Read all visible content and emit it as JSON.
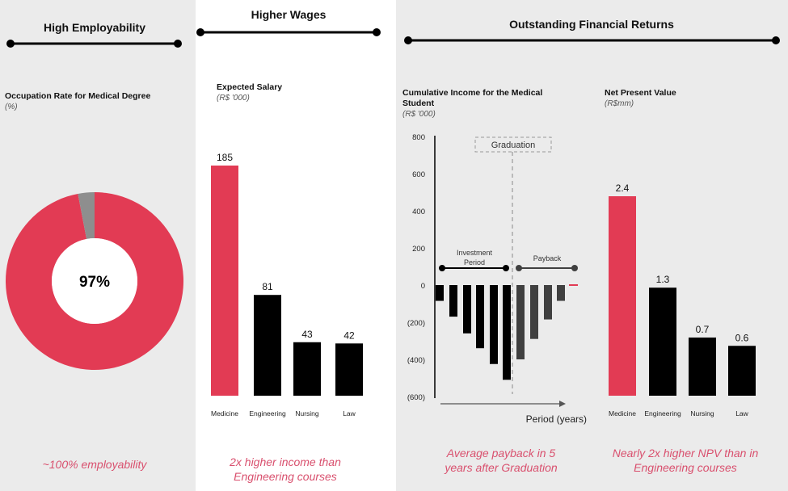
{
  "colors": {
    "accent": "#e23b54",
    "dark": "#000000",
    "payback": "#404040",
    "donut_rest": "#8e8e8e",
    "note": "#d9506e",
    "panel_gray": "#ebebeb"
  },
  "sections": [
    {
      "title": "High Employability",
      "note": "~100% employability"
    },
    {
      "title": "Higher Wages",
      "note_lines": [
        "2x higher income than",
        "Engineering courses"
      ]
    },
    {
      "title": "Outstanding Financial Returns",
      "notes": [
        [
          "Average payback in 5",
          "years after Graduation"
        ],
        [
          "Nearly 2x higher NPV than in",
          "Engineering courses"
        ]
      ]
    }
  ],
  "chart_data": [
    {
      "type": "pie",
      "title": "Occupation Rate for Medical Degree",
      "unit": "(%)",
      "center_label": "97%",
      "values": [
        97,
        3
      ],
      "donut": true
    },
    {
      "type": "bar",
      "title": "Expected Salary",
      "unit": "(R$ '000)",
      "categories": [
        "Medicine",
        "Engineering",
        "Nursing",
        "Law"
      ],
      "values": [
        185,
        81,
        43,
        42
      ],
      "highlight": "Medicine"
    },
    {
      "type": "bar",
      "title": "Cumulative Income for the Medical Student",
      "unit": "(R$ '000)",
      "xlabel": "Period (years)",
      "ylim": [
        -600,
        800
      ],
      "yticks": [
        "800",
        "600",
        "400",
        "200",
        "0",
        "(200)",
        "(400)",
        "(600)"
      ],
      "values": [
        -85,
        -170,
        -260,
        -340,
        -425,
        -510,
        -400,
        -290,
        -185,
        -85,
        0
      ],
      "annotations": {
        "graduation": "Graduation",
        "investment": [
          "Investment",
          "Period"
        ],
        "payback": "Payback"
      }
    },
    {
      "type": "bar",
      "title": "Net Present Value",
      "unit": "(R$mm)",
      "categories": [
        "Medicine",
        "Engineering",
        "Nursing",
        "Law"
      ],
      "values": [
        2.4,
        1.3,
        0.7,
        0.6
      ],
      "value_labels": [
        "2.4",
        "1.3",
        "0.7",
        "0.6"
      ],
      "highlight": "Medicine"
    }
  ]
}
